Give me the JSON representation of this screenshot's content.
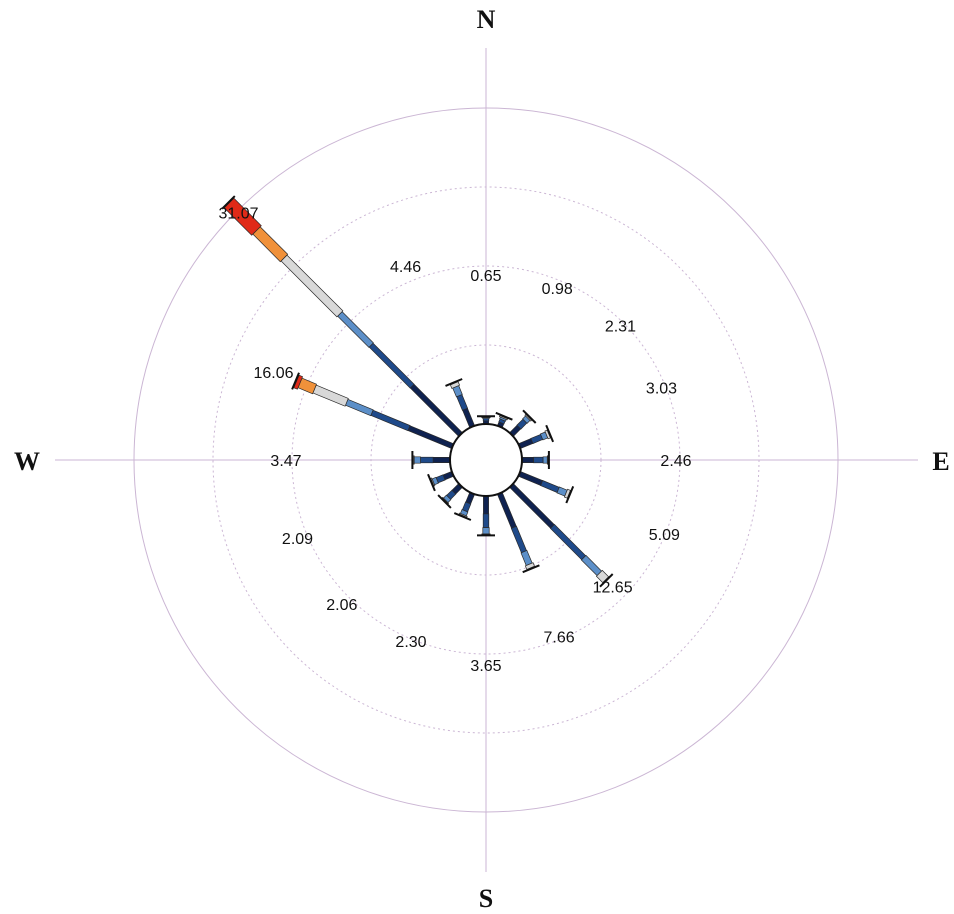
{
  "chart_data": {
    "type": "wind-rose",
    "compass": {
      "n": "N",
      "e": "E",
      "s": "S",
      "w": "W"
    },
    "directions": [
      "N",
      "NNE",
      "NE",
      "ENE",
      "E",
      "ESE",
      "SE",
      "SSE",
      "S",
      "SSW",
      "SW",
      "WSW",
      "W",
      "WNW",
      "NW",
      "NNW"
    ],
    "values": [
      0.65,
      0.98,
      2.31,
      3.03,
      2.46,
      5.09,
      12.65,
      7.66,
      3.65,
      2.3,
      2.06,
      2.09,
      3.47,
      16.06,
      31.07,
      4.46
    ],
    "value_labels": [
      "0.65",
      "0.98",
      "2.31",
      "3.03",
      "2.46",
      "5.09",
      "12.65",
      "7.66",
      "3.65",
      "2.30",
      "2.06",
      "2.09",
      "3.47",
      "16.06",
      "31.07",
      "4.46"
    ],
    "rlim": [
      0,
      30
    ],
    "rings": [
      7.5,
      15,
      22.5,
      30
    ],
    "grid": true,
    "speed_class_colors": [
      "#0f2250",
      "#1f4a8a",
      "#5c8fc8",
      "#d8d8d8",
      "#f0913a",
      "#e02a18"
    ],
    "bins": [
      [
        0.3,
        0.2,
        0.1,
        0.05,
        0,
        0
      ],
      [
        0.4,
        0.3,
        0.18,
        0.1,
        0,
        0
      ],
      [
        1.0,
        0.8,
        0.4,
        0.11,
        0,
        0
      ],
      [
        1.3,
        1.0,
        0.5,
        0.23,
        0,
        0
      ],
      [
        1.1,
        0.9,
        0.4,
        0.06,
        0,
        0
      ],
      [
        2.3,
        1.7,
        0.8,
        0.29,
        0,
        0
      ],
      [
        5.5,
        4.2,
        2.1,
        0.85,
        0,
        0
      ],
      [
        3.5,
        2.5,
        1.3,
        0.36,
        0,
        0
      ],
      [
        1.7,
        1.3,
        0.6,
        0.05,
        0,
        0
      ],
      [
        1.0,
        0.8,
        0.4,
        0.1,
        0,
        0
      ],
      [
        0.9,
        0.7,
        0.4,
        0.06,
        0,
        0
      ],
      [
        0.9,
        0.7,
        0.4,
        0.09,
        0,
        0
      ],
      [
        1.6,
        1.2,
        0.6,
        0.07,
        0,
        0
      ],
      [
        4.5,
        3.8,
        2.6,
        3.3,
        1.5,
        0.36
      ],
      [
        6.5,
        5.5,
        4.2,
        7.5,
        3.7,
        3.67
      ],
      [
        1.8,
        1.4,
        0.9,
        0.36,
        0,
        0
      ]
    ]
  }
}
